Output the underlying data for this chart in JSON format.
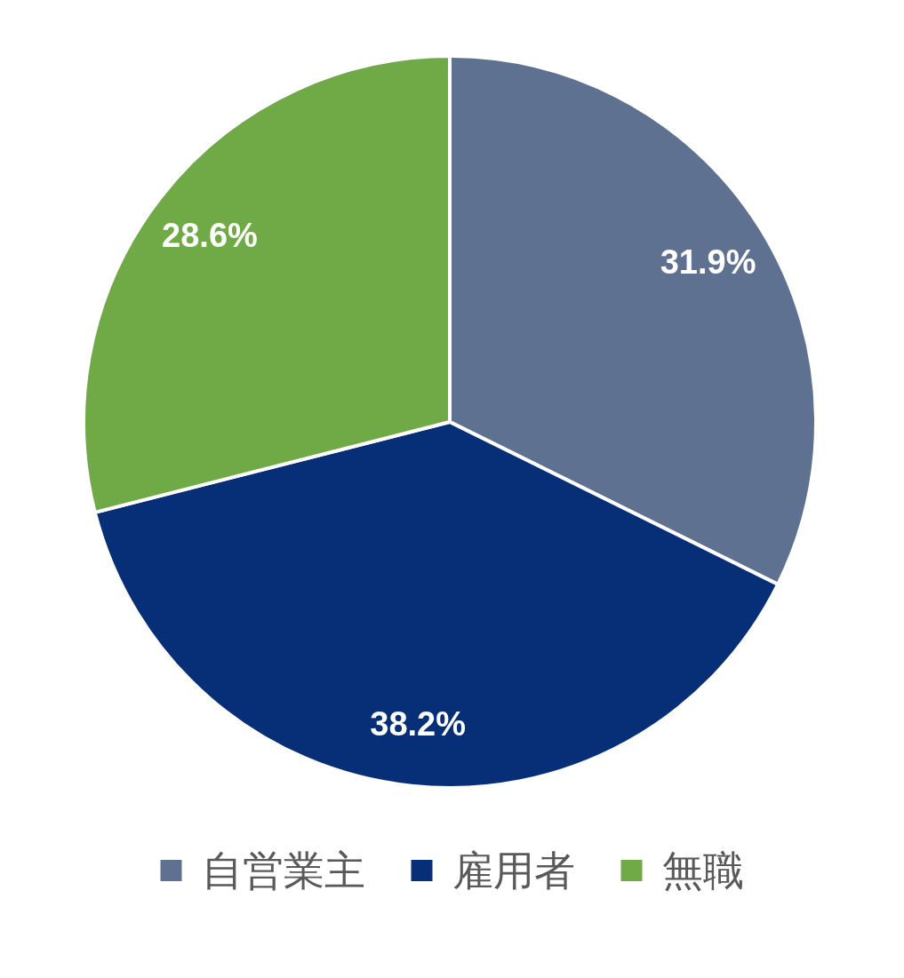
{
  "chart_data": {
    "type": "pie",
    "categories": [
      "自営業主",
      "雇用者",
      "無職"
    ],
    "values": [
      31.9,
      38.2,
      28.6
    ],
    "colors": [
      "#5f7190",
      "#072f78",
      "#70aa46"
    ],
    "value_labels": [
      "31.9%",
      "38.2%",
      "28.6%"
    ],
    "legend": "bottom"
  }
}
